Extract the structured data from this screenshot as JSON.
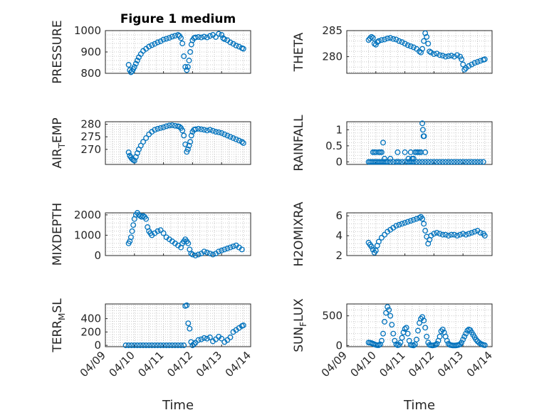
{
  "figure": {
    "title": "Figure 1 medium",
    "xlabel": "Time"
  },
  "chart_data": [
    {
      "type": "scatter",
      "ylabel_parts": [
        "PRESSURE"
      ],
      "ylim": [
        800,
        1000
      ],
      "yticks": [
        800,
        900,
        1000
      ],
      "xticks": [
        "04/09",
        "04/10",
        "04/11",
        "04/12",
        "04/13",
        "04/14"
      ],
      "xlim": [
        0,
        5
      ],
      "show_xticklabels": false,
      "show_title": true,
      "x": [
        0.8,
        0.84,
        0.88,
        0.92,
        0.96,
        1.0,
        1.05,
        1.1,
        1.15,
        1.22,
        1.3,
        1.4,
        1.5,
        1.6,
        1.7,
        1.8,
        1.9,
        2.0,
        2.1,
        2.2,
        2.3,
        2.4,
        2.5,
        2.55,
        2.6,
        2.65,
        2.7,
        2.75,
        2.8,
        2.84,
        2.88,
        2.92,
        2.96,
        3.0,
        3.05,
        3.1,
        3.2,
        3.3,
        3.4,
        3.5,
        3.6,
        3.7,
        3.8,
        3.9,
        4.0,
        4.05,
        4.1,
        4.2,
        4.3,
        4.4,
        4.5,
        4.6,
        4.7,
        4.75
      ],
      "y": [
        840,
        815,
        805,
        810,
        820,
        830,
        845,
        860,
        875,
        890,
        905,
        915,
        925,
        932,
        938,
        945,
        950,
        958,
        962,
        966,
        972,
        976,
        980,
        975,
        965,
        940,
        880,
        830,
        815,
        830,
        860,
        900,
        935,
        955,
        965,
        968,
        970,
        968,
        972,
        968,
        975,
        980,
        970,
        985,
        980,
        965,
        960,
        955,
        945,
        938,
        930,
        925,
        918,
        915
      ]
    },
    {
      "type": "scatter",
      "ylabel_parts": [
        "THETA"
      ],
      "ylim": [
        276.8,
        285
      ],
      "yticks": [
        280,
        285
      ],
      "xticks": [
        "04/09",
        "04/10",
        "04/11",
        "04/12",
        "04/13",
        "04/14"
      ],
      "xlim": [
        0,
        5
      ],
      "show_xticklabels": false,
      "show_title": false,
      "x": [
        0.75,
        0.8,
        0.85,
        0.9,
        0.95,
        1.0,
        1.05,
        1.1,
        1.2,
        1.3,
        1.4,
        1.5,
        1.6,
        1.7,
        1.8,
        1.9,
        2.0,
        2.1,
        2.2,
        2.3,
        2.4,
        2.5,
        2.55,
        2.6,
        2.65,
        2.7,
        2.75,
        2.8,
        2.85,
        2.9,
        3.0,
        3.1,
        3.2,
        3.3,
        3.4,
        3.5,
        3.6,
        3.7,
        3.8,
        3.9,
        3.95,
        4.0,
        4.05,
        4.1,
        4.2,
        4.3,
        4.4,
        4.5,
        4.6,
        4.7,
        4.75
      ],
      "y": [
        283.2,
        283.5,
        283.8,
        283.6,
        282.5,
        282.3,
        282.8,
        283.0,
        283.2,
        283.3,
        283.5,
        283.6,
        283.4,
        283.3,
        283.0,
        282.8,
        282.5,
        282.2,
        282.0,
        281.8,
        281.5,
        281.0,
        280.8,
        281.5,
        283.0,
        284.5,
        283.8,
        282.5,
        281.0,
        280.8,
        280.5,
        280.6,
        280.3,
        280.2,
        280.0,
        280.1,
        280.2,
        280.0,
        280.3,
        280.0,
        279.5,
        278.5,
        277.5,
        277.8,
        278.2,
        278.5,
        278.8,
        279.0,
        279.2,
        279.4,
        279.5
      ]
    },
    {
      "type": "scatter",
      "ylabel_parts": [
        "AIR",
        "T",
        "EMP"
      ],
      "ylim": [
        264,
        281
      ],
      "yticks": [
        270,
        275,
        280
      ],
      "xticks": [
        "04/09",
        "04/10",
        "04/11",
        "04/12",
        "04/13",
        "04/14"
      ],
      "xlim": [
        0,
        5
      ],
      "show_xticklabels": false,
      "show_title": false,
      "x": [
        0.8,
        0.84,
        0.88,
        0.92,
        0.96,
        1.0,
        1.05,
        1.1,
        1.15,
        1.22,
        1.3,
        1.4,
        1.5,
        1.6,
        1.7,
        1.8,
        1.9,
        2.0,
        2.1,
        2.2,
        2.3,
        2.4,
        2.5,
        2.55,
        2.6,
        2.65,
        2.7,
        2.75,
        2.8,
        2.84,
        2.88,
        2.92,
        2.96,
        3.0,
        3.05,
        3.1,
        3.2,
        3.3,
        3.4,
        3.5,
        3.6,
        3.7,
        3.8,
        3.9,
        4.0,
        4.1,
        4.2,
        4.3,
        4.4,
        4.5,
        4.6,
        4.7,
        4.75
      ],
      "y": [
        268.8,
        267.5,
        266.8,
        266.2,
        265.8,
        265.5,
        267,
        268.5,
        270,
        271.5,
        273,
        274.5,
        276,
        277,
        277.8,
        278.2,
        278.5,
        278.8,
        279.2,
        279.5,
        279.6,
        279.4,
        279.2,
        279.0,
        278.5,
        277.5,
        275.5,
        272.0,
        269.0,
        270.0,
        271.5,
        273.0,
        275.5,
        277.0,
        277.8,
        278.0,
        278.2,
        278.0,
        277.8,
        277.5,
        277.8,
        277.4,
        277.0,
        276.8,
        276.5,
        276.0,
        275.5,
        275.0,
        274.5,
        274.0,
        273.5,
        273.0,
        272.5
      ]
    },
    {
      "type": "scatter",
      "ylabel_parts": [
        "RAINFALL"
      ],
      "ylim": [
        -0.08,
        1.25
      ],
      "yticks": [
        0,
        0.5,
        1
      ],
      "ytick_labels": [
        "0",
        "0.5",
        "1"
      ],
      "xticks": [
        "04/09",
        "04/10",
        "04/11",
        "04/12",
        "04/13",
        "04/14"
      ],
      "xlim": [
        0,
        5
      ],
      "show_xticklabels": false,
      "show_title": false,
      "x": [
        0.75,
        0.8,
        0.85,
        0.9,
        0.95,
        1.0,
        1.05,
        1.1,
        1.15,
        1.2,
        1.25,
        1.3,
        1.35,
        1.4,
        1.5,
        1.6,
        1.7,
        1.75,
        1.8,
        1.9,
        2.0,
        2.1,
        2.15,
        2.2,
        2.25,
        2.3,
        2.4,
        2.5,
        2.6,
        2.7,
        2.8,
        2.9,
        3.0,
        3.1,
        3.2,
        3.3,
        3.4,
        3.5,
        3.6,
        3.7,
        3.8,
        3.9,
        4.0,
        4.1,
        4.2,
        4.3,
        4.4,
        4.5,
        4.6,
        4.7,
        2.55,
        2.6,
        2.62,
        2.64,
        2.66,
        2.7,
        2.5,
        2.45,
        2.4,
        2.35,
        2.3,
        2.25,
        1.1,
        1.15,
        1.2,
        1.25,
        1.3,
        1.0,
        0.95,
        0.9,
        1.5,
        1.75,
        2.0,
        2.12,
        2.2
      ],
      "y": [
        0,
        0,
        0,
        0,
        0,
        0,
        0,
        0,
        0,
        0,
        0,
        0,
        0,
        0,
        0,
        0,
        0,
        0,
        0,
        0,
        0,
        0,
        0,
        0,
        0,
        0,
        0,
        0,
        0,
        0,
        0,
        0,
        0,
        0,
        0,
        0,
        0,
        0,
        0,
        0,
        0,
        0,
        0,
        0,
        0,
        0,
        0,
        0,
        0,
        0,
        0.3,
        1.2,
        1.0,
        0.8,
        0.8,
        0.3,
        0.3,
        0.3,
        0.3,
        0.3,
        0.1,
        0.1,
        0.3,
        0.3,
        0.3,
        0.6,
        0.1,
        0.3,
        0.3,
        0.3,
        0.1,
        0.3,
        0.3,
        0.1,
        0.3
      ]
    },
    {
      "type": "scatter",
      "ylabel_parts": [
        "MIXDEPTH"
      ],
      "ylim": [
        0,
        2100
      ],
      "yticks": [
        0,
        1000,
        2000
      ],
      "xticks": [
        "04/09",
        "04/10",
        "04/11",
        "04/12",
        "04/13",
        "04/14"
      ],
      "xlim": [
        0,
        5
      ],
      "show_xticklabels": false,
      "show_title": false,
      "x": [
        0.8,
        0.84,
        0.88,
        0.92,
        0.96,
        1.0,
        1.05,
        1.1,
        1.15,
        1.2,
        1.25,
        1.3,
        1.35,
        1.4,
        1.45,
        1.5,
        1.55,
        1.6,
        1.7,
        1.8,
        1.9,
        2.0,
        2.1,
        2.2,
        2.3,
        2.4,
        2.5,
        2.6,
        2.65,
        2.7,
        2.75,
        2.8,
        2.85,
        2.9,
        2.95,
        3.0,
        3.1,
        3.2,
        3.3,
        3.4,
        3.5,
        3.6,
        3.7,
        3.8,
        3.9,
        4.0,
        4.1,
        4.2,
        4.3,
        4.4,
        4.5,
        4.6,
        4.7
      ],
      "y": [
        600,
        700,
        900,
        1200,
        1500,
        1800,
        2000,
        2100,
        2000,
        1950,
        1900,
        1950,
        1900,
        1800,
        1400,
        1200,
        1100,
        1000,
        1100,
        1200,
        1250,
        1100,
        900,
        800,
        700,
        600,
        500,
        400,
        600,
        700,
        800,
        700,
        600,
        300,
        100,
        50,
        0,
        50,
        100,
        200,
        150,
        100,
        50,
        100,
        200,
        250,
        300,
        350,
        400,
        450,
        500,
        400,
        300
      ]
    },
    {
      "type": "scatter",
      "ylabel_parts": [
        "H2OMIXRA"
      ],
      "ylim": [
        2,
        6.3
      ],
      "yticks": [
        2,
        4,
        6
      ],
      "xticks": [
        "04/09",
        "04/10",
        "04/11",
        "04/12",
        "04/13",
        "04/14"
      ],
      "xlim": [
        0,
        5
      ],
      "show_xticklabels": false,
      "show_title": false,
      "x": [
        0.75,
        0.8,
        0.85,
        0.9,
        0.95,
        1.0,
        1.05,
        1.1,
        1.2,
        1.3,
        1.4,
        1.5,
        1.6,
        1.7,
        1.8,
        1.9,
        2.0,
        2.1,
        2.2,
        2.3,
        2.4,
        2.5,
        2.55,
        2.6,
        2.65,
        2.7,
        2.75,
        2.8,
        2.85,
        2.9,
        3.0,
        3.1,
        3.2,
        3.3,
        3.4,
        3.5,
        3.6,
        3.7,
        3.8,
        3.9,
        4.0,
        4.1,
        4.2,
        4.3,
        4.4,
        4.5,
        4.6,
        4.7,
        4.75
      ],
      "y": [
        3.3,
        3.1,
        2.9,
        2.6,
        2.3,
        2.5,
        3.0,
        3.4,
        3.8,
        4.1,
        4.4,
        4.6,
        4.8,
        5.0,
        5.1,
        5.2,
        5.3,
        5.4,
        5.5,
        5.6,
        5.7,
        5.8,
        5.9,
        5.7,
        5.2,
        4.5,
        3.9,
        3.2,
        3.6,
        4.0,
        4.2,
        4.3,
        4.2,
        4.1,
        4.1,
        4.0,
        4.1,
        4.1,
        4.0,
        4.1,
        4.2,
        4.1,
        4.2,
        4.3,
        4.4,
        4.5,
        4.3,
        4.2,
        4.0
      ]
    },
    {
      "type": "scatter",
      "ylabel_parts": [
        "TERR",
        "M",
        "SL"
      ],
      "ylim": [
        -20,
        620
      ],
      "yticks": [
        0,
        200,
        400
      ],
      "xticks": [
        "04/09",
        "04/10",
        "04/11",
        "04/12",
        "04/13",
        "04/14"
      ],
      "xlim": [
        0,
        5
      ],
      "show_xticklabels": true,
      "show_title": false,
      "x": [
        0.7,
        0.8,
        0.9,
        1.0,
        1.1,
        1.2,
        1.3,
        1.4,
        1.5,
        1.6,
        1.7,
        1.8,
        1.9,
        2.0,
        2.1,
        2.2,
        2.3,
        2.4,
        2.5,
        2.6,
        2.7,
        2.75,
        2.8,
        2.85,
        2.9,
        2.95,
        3.0,
        3.05,
        3.1,
        3.2,
        3.3,
        3.4,
        3.5,
        3.6,
        3.7,
        3.8,
        3.9,
        4.0,
        4.1,
        4.2,
        4.3,
        4.4,
        4.5,
        4.6,
        4.7,
        4.75
      ],
      "y": [
        0,
        0,
        0,
        0,
        0,
        0,
        0,
        0,
        0,
        0,
        0,
        0,
        0,
        0,
        0,
        0,
        0,
        0,
        0,
        0,
        0,
        590,
        600,
        330,
        250,
        50,
        0,
        20,
        40,
        80,
        90,
        110,
        100,
        120,
        60,
        90,
        130,
        100,
        50,
        80,
        120,
        200,
        230,
        260,
        290,
        300
      ]
    },
    {
      "type": "scatter",
      "ylabel_parts": [
        "SUN",
        "F",
        "LUX"
      ],
      "ylim": [
        -20,
        700
      ],
      "yticks": [
        0,
        500
      ],
      "xticks": [
        "04/09",
        "04/10",
        "04/11",
        "04/12",
        "04/13",
        "04/14"
      ],
      "xlim": [
        0,
        5
      ],
      "show_xticklabels": true,
      "show_title": false,
      "x": [
        0.75,
        0.8,
        0.85,
        0.9,
        0.95,
        1.0,
        1.05,
        1.1,
        1.15,
        1.2,
        1.25,
        1.3,
        1.35,
        1.4,
        1.45,
        1.5,
        1.55,
        1.6,
        1.65,
        1.7,
        1.75,
        1.8,
        1.85,
        1.9,
        1.95,
        2.0,
        2.05,
        2.1,
        2.15,
        2.2,
        2.25,
        2.3,
        2.35,
        2.4,
        2.45,
        2.5,
        2.55,
        2.6,
        2.65,
        2.7,
        2.75,
        2.8,
        2.85,
        2.9,
        2.95,
        3.0,
        3.05,
        3.1,
        3.15,
        3.2,
        3.25,
        3.3,
        3.35,
        3.4,
        3.45,
        3.5,
        3.55,
        3.6,
        3.65,
        3.7,
        3.75,
        3.8,
        3.85,
        3.9,
        3.95,
        4.0,
        4.05,
        4.1,
        4.15,
        4.2,
        4.25,
        4.3,
        4.35,
        4.4,
        4.45,
        4.5,
        4.55,
        4.6,
        4.65,
        4.7,
        4.75
      ],
      "y": [
        50,
        45,
        40,
        30,
        20,
        10,
        5,
        5,
        20,
        80,
        200,
        400,
        550,
        650,
        600,
        500,
        350,
        200,
        80,
        20,
        5,
        10,
        50,
        130,
        220,
        280,
        300,
        200,
        80,
        10,
        5,
        0,
        20,
        100,
        250,
        380,
        450,
        480,
        420,
        300,
        150,
        50,
        10,
        5,
        0,
        5,
        10,
        30,
        80,
        150,
        240,
        270,
        220,
        150,
        80,
        30,
        10,
        5,
        0,
        0,
        0,
        5,
        10,
        20,
        50,
        100,
        150,
        200,
        250,
        270,
        260,
        220,
        180,
        140,
        100,
        70,
        50,
        30,
        20,
        10,
        5
      ]
    }
  ]
}
